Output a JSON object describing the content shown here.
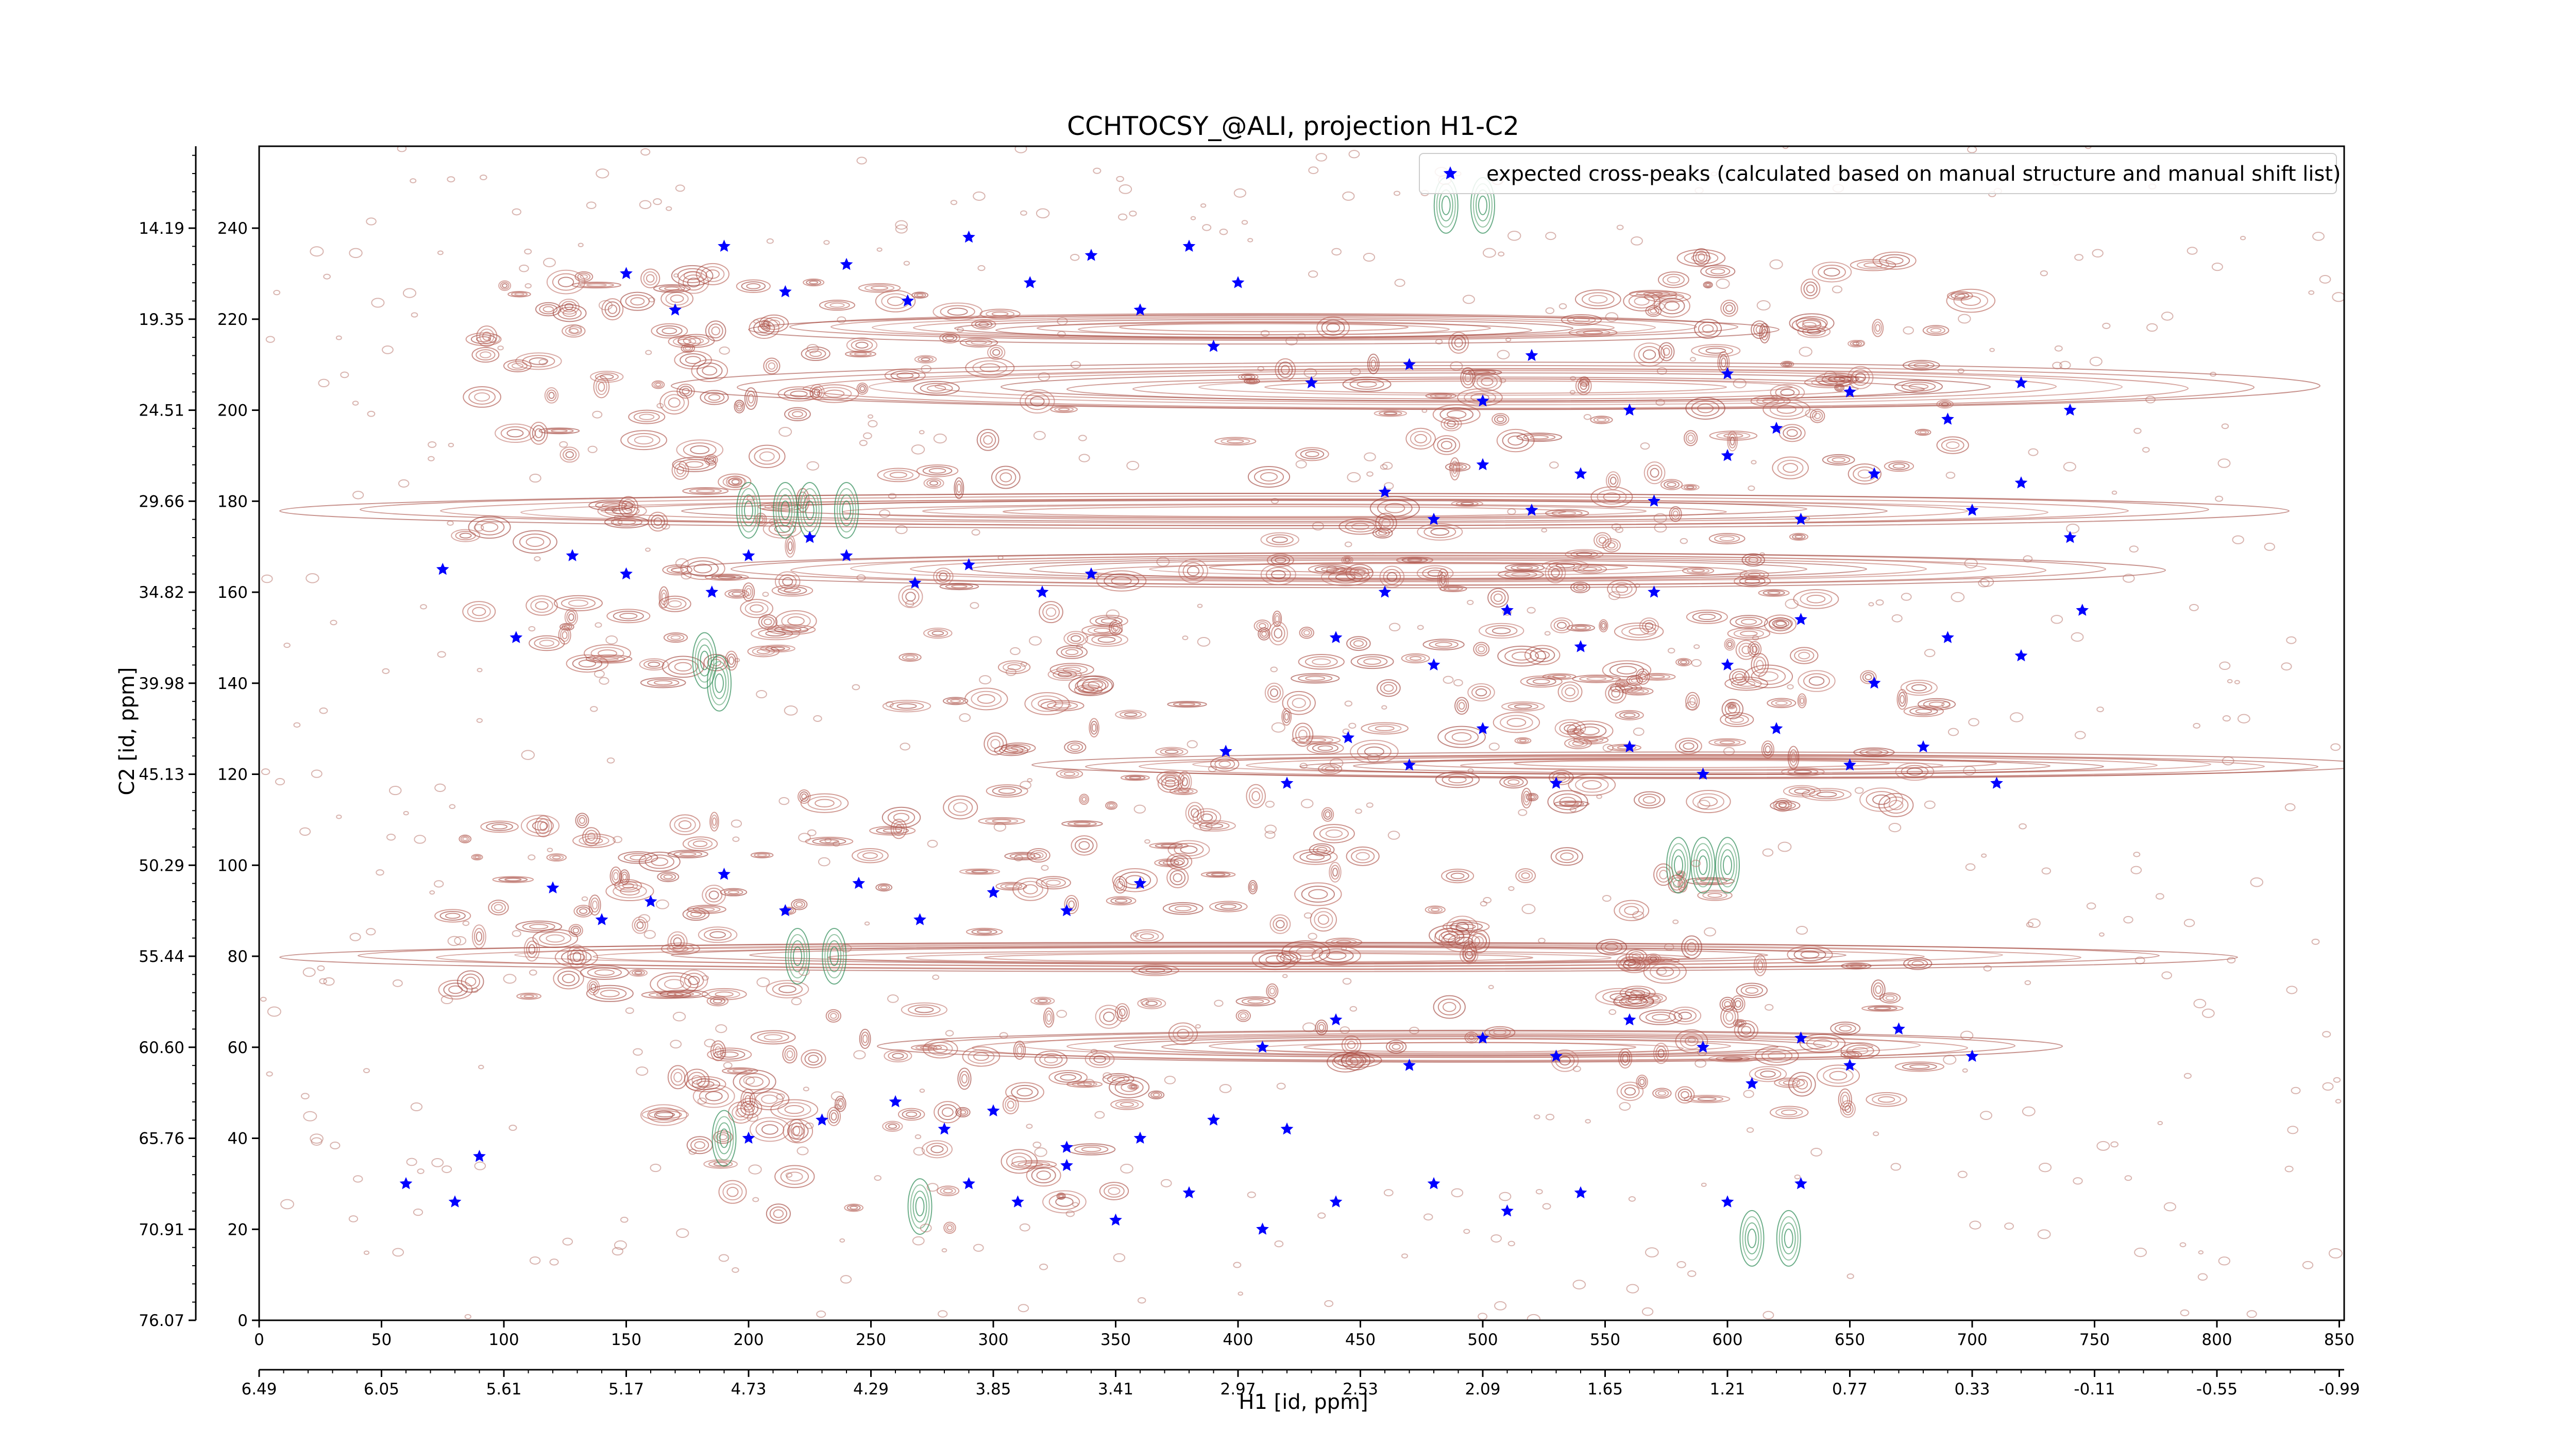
{
  "chart_data": {
    "type": "scatter",
    "title": "CCHTOCSY_@ALI, projection H1-C2",
    "xlabel": "H1 [id, ppm]",
    "ylabel": "C2 [id, ppm]",
    "xlim": [
      0,
      852
    ],
    "ylim": [
      0,
      258
    ],
    "x_ticks": [
      "0",
      "50",
      "100",
      "150",
      "200",
      "250",
      "300",
      "350",
      "400",
      "450",
      "500",
      "550",
      "600",
      "650",
      "700",
      "750",
      "800",
      "850"
    ],
    "x_ppm_ticks": [
      "6.49",
      "6.05",
      "5.61",
      "5.17",
      "4.73",
      "4.29",
      "3.85",
      "3.41",
      "2.97",
      "2.53",
      "2.09",
      "1.65",
      "1.21",
      "0.77",
      "0.33",
      "-0.11",
      "-0.55",
      "-0.99"
    ],
    "y_ticks": [
      "0",
      "20",
      "40",
      "60",
      "80",
      "100",
      "120",
      "140",
      "160",
      "180",
      "200",
      "220",
      "240"
    ],
    "y_ppm_ticks": [
      "76.07",
      "70.91",
      "65.76",
      "60.60",
      "55.44",
      "50.29",
      "45.13",
      "39.98",
      "34.82",
      "29.66",
      "24.51",
      "19.35",
      "14.19"
    ],
    "grid": false,
    "legend_position": "top-right",
    "series": [
      {
        "name": "expected cross-peaks (calculated based on manual structure and manual shift list)",
        "color": "#0000ff",
        "marker": "star",
        "points": [
          [
            75,
            165
          ],
          [
            105,
            150
          ],
          [
            128,
            168
          ],
          [
            150,
            164
          ],
          [
            185,
            160
          ],
          [
            200,
            168
          ],
          [
            225,
            172
          ],
          [
            240,
            168
          ],
          [
            268,
            162
          ],
          [
            290,
            166
          ],
          [
            320,
            160
          ],
          [
            340,
            164
          ],
          [
            120,
            95
          ],
          [
            140,
            88
          ],
          [
            160,
            92
          ],
          [
            190,
            98
          ],
          [
            215,
            90
          ],
          [
            245,
            96
          ],
          [
            270,
            88
          ],
          [
            300,
            94
          ],
          [
            330,
            90
          ],
          [
            360,
            96
          ],
          [
            390,
            214
          ],
          [
            430,
            206
          ],
          [
            470,
            210
          ],
          [
            500,
            202
          ],
          [
            520,
            212
          ],
          [
            560,
            200
          ],
          [
            600,
            208
          ],
          [
            620,
            196
          ],
          [
            650,
            204
          ],
          [
            690,
            198
          ],
          [
            720,
            206
          ],
          [
            740,
            200
          ],
          [
            395,
            125
          ],
          [
            420,
            118
          ],
          [
            445,
            128
          ],
          [
            470,
            122
          ],
          [
            500,
            130
          ],
          [
            530,
            118
          ],
          [
            560,
            126
          ],
          [
            590,
            120
          ],
          [
            620,
            130
          ],
          [
            650,
            122
          ],
          [
            680,
            126
          ],
          [
            710,
            118
          ],
          [
            410,
            60
          ],
          [
            440,
            66
          ],
          [
            470,
            56
          ],
          [
            500,
            62
          ],
          [
            530,
            58
          ],
          [
            560,
            66
          ],
          [
            590,
            60
          ],
          [
            610,
            52
          ],
          [
            630,
            62
          ],
          [
            650,
            56
          ],
          [
            670,
            64
          ],
          [
            700,
            58
          ],
          [
            290,
            30
          ],
          [
            310,
            26
          ],
          [
            330,
            34
          ],
          [
            350,
            22
          ],
          [
            380,
            28
          ],
          [
            410,
            20
          ],
          [
            440,
            26
          ],
          [
            480,
            30
          ],
          [
            510,
            24
          ],
          [
            540,
            28
          ],
          [
            600,
            26
          ],
          [
            630,
            30
          ],
          [
            60,
            30
          ],
          [
            80,
            26
          ],
          [
            90,
            36
          ],
          [
            200,
            40
          ],
          [
            230,
            44
          ],
          [
            260,
            48
          ],
          [
            280,
            42
          ],
          [
            300,
            46
          ],
          [
            330,
            38
          ],
          [
            360,
            40
          ],
          [
            390,
            44
          ],
          [
            420,
            42
          ],
          [
            440,
            150
          ],
          [
            460,
            160
          ],
          [
            480,
            144
          ],
          [
            510,
            156
          ],
          [
            540,
            148
          ],
          [
            570,
            160
          ],
          [
            600,
            144
          ],
          [
            630,
            154
          ],
          [
            660,
            140
          ],
          [
            690,
            150
          ],
          [
            720,
            146
          ],
          [
            745,
            156
          ],
          [
            150,
            230
          ],
          [
            170,
            222
          ],
          [
            190,
            236
          ],
          [
            215,
            226
          ],
          [
            240,
            232
          ],
          [
            265,
            224
          ],
          [
            290,
            238
          ],
          [
            315,
            228
          ],
          [
            340,
            234
          ],
          [
            360,
            222
          ],
          [
            380,
            236
          ],
          [
            400,
            228
          ],
          [
            460,
            182
          ],
          [
            480,
            176
          ],
          [
            500,
            188
          ],
          [
            520,
            178
          ],
          [
            540,
            186
          ],
          [
            570,
            180
          ],
          [
            600,
            190
          ],
          [
            630,
            176
          ],
          [
            660,
            186
          ],
          [
            700,
            178
          ],
          [
            720,
            184
          ],
          [
            740,
            172
          ]
        ]
      }
    ]
  }
}
